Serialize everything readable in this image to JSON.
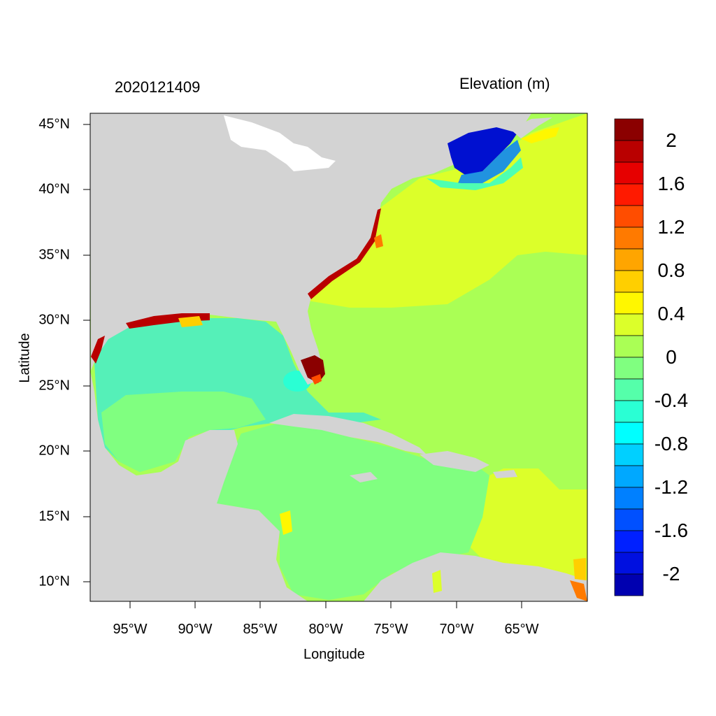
{
  "header": {
    "timestamp": "2020121409",
    "variable_title": "Elevation (m)"
  },
  "axes": {
    "xlabel": "Longitude",
    "ylabel": "Latitude",
    "x_ticks": [
      {
        "value": -95,
        "label": "95°W"
      },
      {
        "value": -90,
        "label": "90°W"
      },
      {
        "value": -85,
        "label": "85°W"
      },
      {
        "value": -80,
        "label": "80°W"
      },
      {
        "value": -75,
        "label": "75°W"
      },
      {
        "value": -70,
        "label": "70°W"
      },
      {
        "value": -65,
        "label": "65°W"
      }
    ],
    "y_ticks": [
      {
        "value": 45,
        "label": "45°N"
      },
      {
        "value": 40,
        "label": "40°N"
      },
      {
        "value": 35,
        "label": "35°N"
      },
      {
        "value": 30,
        "label": "30°N"
      },
      {
        "value": 25,
        "label": "25°N"
      },
      {
        "value": 20,
        "label": "20°N"
      },
      {
        "value": 15,
        "label": "15°N"
      },
      {
        "value": 10,
        "label": "10°N"
      }
    ],
    "lon_range": [
      -98,
      -60
    ],
    "lat_range": [
      8.5,
      45.8
    ]
  },
  "colorbar": {
    "labels": [
      "2",
      "1.6",
      "1.2",
      "0.8",
      "0.4",
      "0",
      "-0.4",
      "-0.8",
      "-1.2",
      "-1.6",
      "-2"
    ],
    "colors_top_to_bottom": [
      "#8b0000",
      "#b90000",
      "#e60000",
      "#ff1a00",
      "#ff4d00",
      "#ff7a00",
      "#ffa500",
      "#ffcf00",
      "#fff700",
      "#dcff2a",
      "#aaff55",
      "#80ff80",
      "#55ffaa",
      "#2affd4",
      "#00ffff",
      "#00d0ff",
      "#00a8ff",
      "#0080ff",
      "#0050ff",
      "#0020ff",
      "#0010e0",
      "#0000b0"
    ]
  },
  "map_colors": {
    "land": "#d3d3d3",
    "gulf": "#55f0b8",
    "caribbean": "#80ff80",
    "atlantic_south": "#aaff55",
    "atlantic_north": "#dcff2a",
    "gulf_of_maine": "#0010d0",
    "florida_surge": "#8b0000"
  }
}
